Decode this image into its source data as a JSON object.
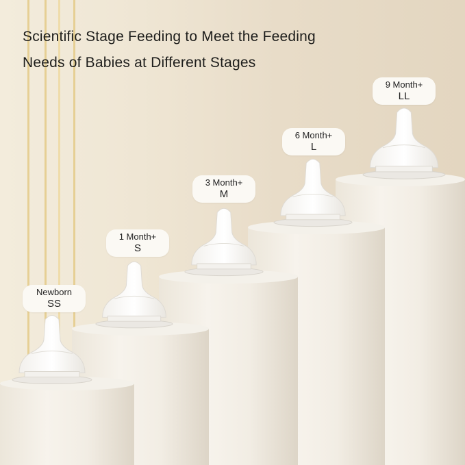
{
  "headline": {
    "line1": "Scientific Stage Feeding to Meet the Feeding",
    "line2": "Needs of Babies at Different Stages"
  },
  "stages": [
    {
      "age": "Newborn",
      "size": "SS"
    },
    {
      "age": "1 Month+",
      "size": "S"
    },
    {
      "age": "3 Month+",
      "size": "M"
    },
    {
      "age": "6 Month+",
      "size": "L"
    },
    {
      "age": "9 Month+",
      "size": "LL"
    }
  ],
  "colors": {
    "background": "#efe6d4",
    "stripe": "#e6cf94",
    "pedestal": "#f4f1ea",
    "label_bg": "#fbf9f4"
  }
}
